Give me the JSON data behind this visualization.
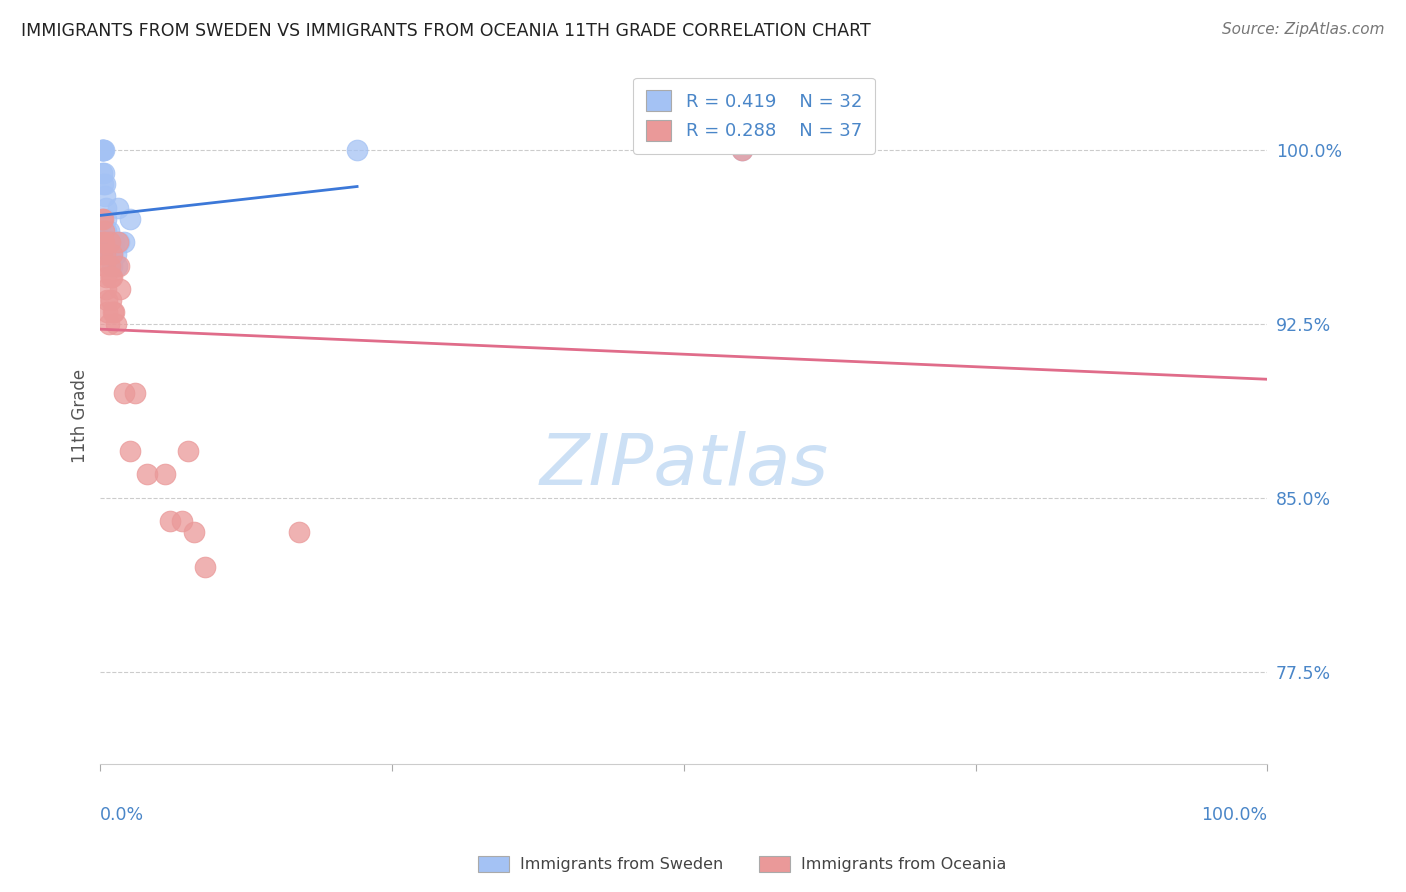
{
  "title": "IMMIGRANTS FROM SWEDEN VS IMMIGRANTS FROM OCEANIA 11TH GRADE CORRELATION CHART",
  "source": "Source: ZipAtlas.com",
  "ylabel": "11th Grade",
  "y_ticks": [
    0.775,
    0.85,
    0.925,
    1.0
  ],
  "y_tick_labels": [
    "77.5%",
    "85.0%",
    "92.5%",
    "100.0%"
  ],
  "x_range": [
    0.0,
    1.0
  ],
  "y_range": [
    0.735,
    1.035
  ],
  "sweden_color": "#a4c2f4",
  "oceania_color": "#ea9999",
  "sweden_line_color": "#3c78d8",
  "oceania_line_color": "#e06c8a",
  "legend_R_sweden": "R = 0.419",
  "legend_N_sweden": "N = 32",
  "legend_R_oceania": "R = 0.288",
  "legend_N_oceania": "N = 37",
  "sweden_x": [
    0.001,
    0.001,
    0.001,
    0.002,
    0.002,
    0.002,
    0.003,
    0.003,
    0.004,
    0.004,
    0.005,
    0.005,
    0.005,
    0.006,
    0.006,
    0.007,
    0.007,
    0.008,
    0.008,
    0.009,
    0.009,
    0.01,
    0.01,
    0.012,
    0.013,
    0.014,
    0.015,
    0.016,
    0.02,
    0.025,
    0.22,
    0.55
  ],
  "sweden_y": [
    1.0,
    1.0,
    0.99,
    1.0,
    1.0,
    0.985,
    1.0,
    0.99,
    0.985,
    0.98,
    0.975,
    0.97,
    0.965,
    0.96,
    0.96,
    0.96,
    0.965,
    0.96,
    0.955,
    0.96,
    0.955,
    0.955,
    0.95,
    0.96,
    0.955,
    0.95,
    0.975,
    0.96,
    0.96,
    0.97,
    1.0,
    1.0
  ],
  "oceania_x": [
    0.001,
    0.001,
    0.002,
    0.002,
    0.003,
    0.003,
    0.004,
    0.004,
    0.005,
    0.005,
    0.006,
    0.006,
    0.007,
    0.008,
    0.008,
    0.009,
    0.009,
    0.01,
    0.01,
    0.011,
    0.012,
    0.013,
    0.015,
    0.016,
    0.017,
    0.02,
    0.025,
    0.03,
    0.04,
    0.055,
    0.06,
    0.07,
    0.075,
    0.08,
    0.09,
    0.17,
    0.55
  ],
  "oceania_y": [
    0.97,
    0.955,
    0.97,
    0.96,
    0.965,
    0.96,
    0.955,
    0.95,
    0.945,
    0.94,
    0.935,
    0.93,
    0.925,
    0.96,
    0.95,
    0.945,
    0.935,
    0.955,
    0.945,
    0.93,
    0.93,
    0.925,
    0.96,
    0.95,
    0.94,
    0.895,
    0.87,
    0.895,
    0.86,
    0.86,
    0.84,
    0.84,
    0.87,
    0.835,
    0.82,
    0.835,
    1.0
  ],
  "background_color": "#ffffff",
  "grid_color": "#cccccc",
  "tick_color": "#4a86c8",
  "title_color": "#222222",
  "source_color": "#777777",
  "label_color": "#444444",
  "watermark_color": "#cce0f5",
  "sweden_legend_label": "Immigrants from Sweden",
  "oceania_legend_label": "Immigrants from Oceania"
}
